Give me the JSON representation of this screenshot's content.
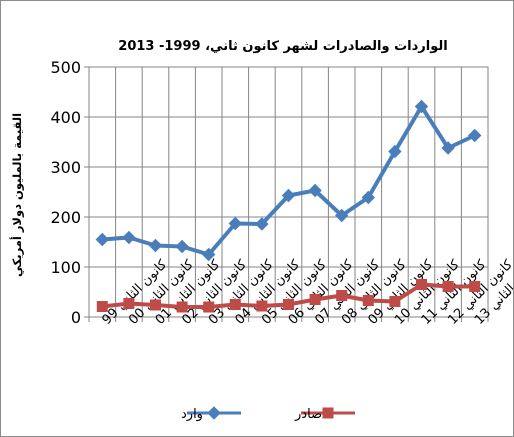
{
  "chart_data": {
    "type": "line",
    "title": "الواردات والصادرات لشهر كانون ثاني،  1999- 2013",
    "ylabel": "القيمة بالمليون دولار أمريكي",
    "xlabel": "",
    "categories": [
      "كانون الثاني 99",
      "كانون الثاني 00",
      "كانون الثاني 01",
      "كانون الثاني 02",
      "كانون الثاني 03",
      "كانون الثاني 04",
      "كانون الثاني 05",
      "كانون الثاني 06",
      "كانون الثاني 07",
      "كانون الثاني 08",
      "كانون الثاني 09",
      "كانون الثاني 10",
      "كانون الثاني 11",
      "كانون الثاني 12",
      "كانون الثاني 13"
    ],
    "ylim": [
      0,
      500
    ],
    "yticks": [
      "0",
      "100",
      "200",
      "300",
      "400",
      "500"
    ],
    "grid": true,
    "legend_position": "bottom",
    "series": [
      {
        "name": "وارد",
        "color": "#4a7ebb",
        "marker": "diamond",
        "values": [
          155,
          159,
          143,
          141,
          125,
          187,
          186,
          243,
          253,
          203,
          239,
          331,
          421,
          338,
          363
        ]
      },
      {
        "name": "صادر",
        "color": "#be4b48",
        "marker": "square",
        "values": [
          21,
          27,
          24,
          20,
          20,
          25,
          22,
          25,
          35,
          43,
          33,
          31,
          65,
          61,
          61
        ]
      }
    ]
  }
}
